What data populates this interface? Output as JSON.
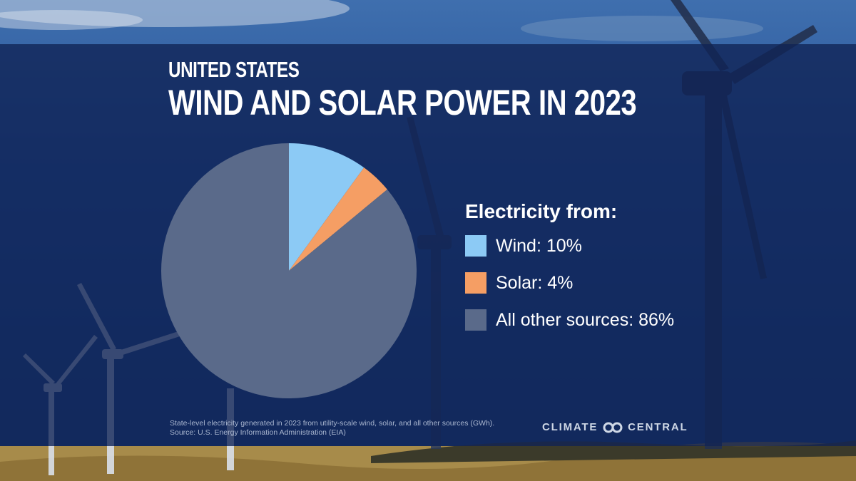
{
  "header": {
    "subtitle": "UNITED STATES",
    "title": "WIND AND SOLAR POWER IN 2023"
  },
  "legend": {
    "title": "Electricity from:",
    "items": [
      {
        "label": "Wind: 10%",
        "color": "#8ccaf5"
      },
      {
        "label": "Solar: 4%",
        "color": "#f59e64"
      },
      {
        "label": "All other sources: 86%",
        "color": "#5a6a8a"
      }
    ]
  },
  "chart_data": {
    "type": "pie",
    "title": "WIND AND SOLAR POWER IN 2023",
    "subtitle": "UNITED STATES",
    "categories": [
      "Wind",
      "Solar",
      "All other sources"
    ],
    "values": [
      10,
      4,
      86
    ],
    "unit": "%",
    "colors": [
      "#8ccaf5",
      "#f59e64",
      "#5a6a8a"
    ],
    "legend_title": "Electricity from:",
    "legend_position": "right"
  },
  "footnote": {
    "line1": "State-level electricity generated in 2023 from utility-scale wind, solar, and all other sources (GWh).",
    "line2": "Source: U.S. Energy Information Administration (EIA)"
  },
  "logo": {
    "left": "CLIMATE",
    "right": "CENTRAL",
    "icon": "infinity-loop-icon"
  }
}
